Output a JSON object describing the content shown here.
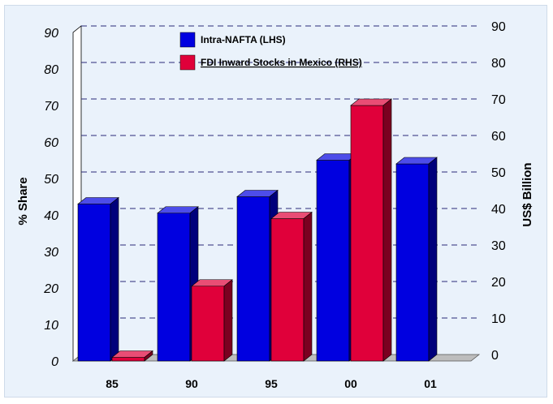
{
  "chart_data": {
    "type": "bar",
    "categories": [
      "85",
      "90",
      "95",
      "00",
      "01"
    ],
    "series": [
      {
        "name": "Intra-NAFTA (LHS)",
        "axis": "left",
        "color": "#0000e0",
        "values": [
          43,
          40.5,
          45,
          55,
          54
        ]
      },
      {
        "name": "FDI Inward Stocks in Mexico (RHS)",
        "axis": "right",
        "color": "#e0003a",
        "values": [
          1,
          20.5,
          39,
          70,
          null
        ]
      }
    ],
    "ylabel": "% Share",
    "y2label": "US$ Billion",
    "ylim": [
      0,
      90
    ],
    "y2lim": [
      0,
      90
    ],
    "yticks": [
      "0",
      "10",
      "20",
      "30",
      "40",
      "50",
      "60",
      "70",
      "80",
      "90"
    ],
    "y2ticks": [
      "0",
      "10",
      "20",
      "30",
      "40",
      "50",
      "60",
      "70",
      "80",
      "90"
    ],
    "grid": true,
    "legend_position": "top-center",
    "colors": {
      "background": "#eaf2fb",
      "floor": "#bdbdbd",
      "gridline": "#2a2a7a"
    }
  }
}
